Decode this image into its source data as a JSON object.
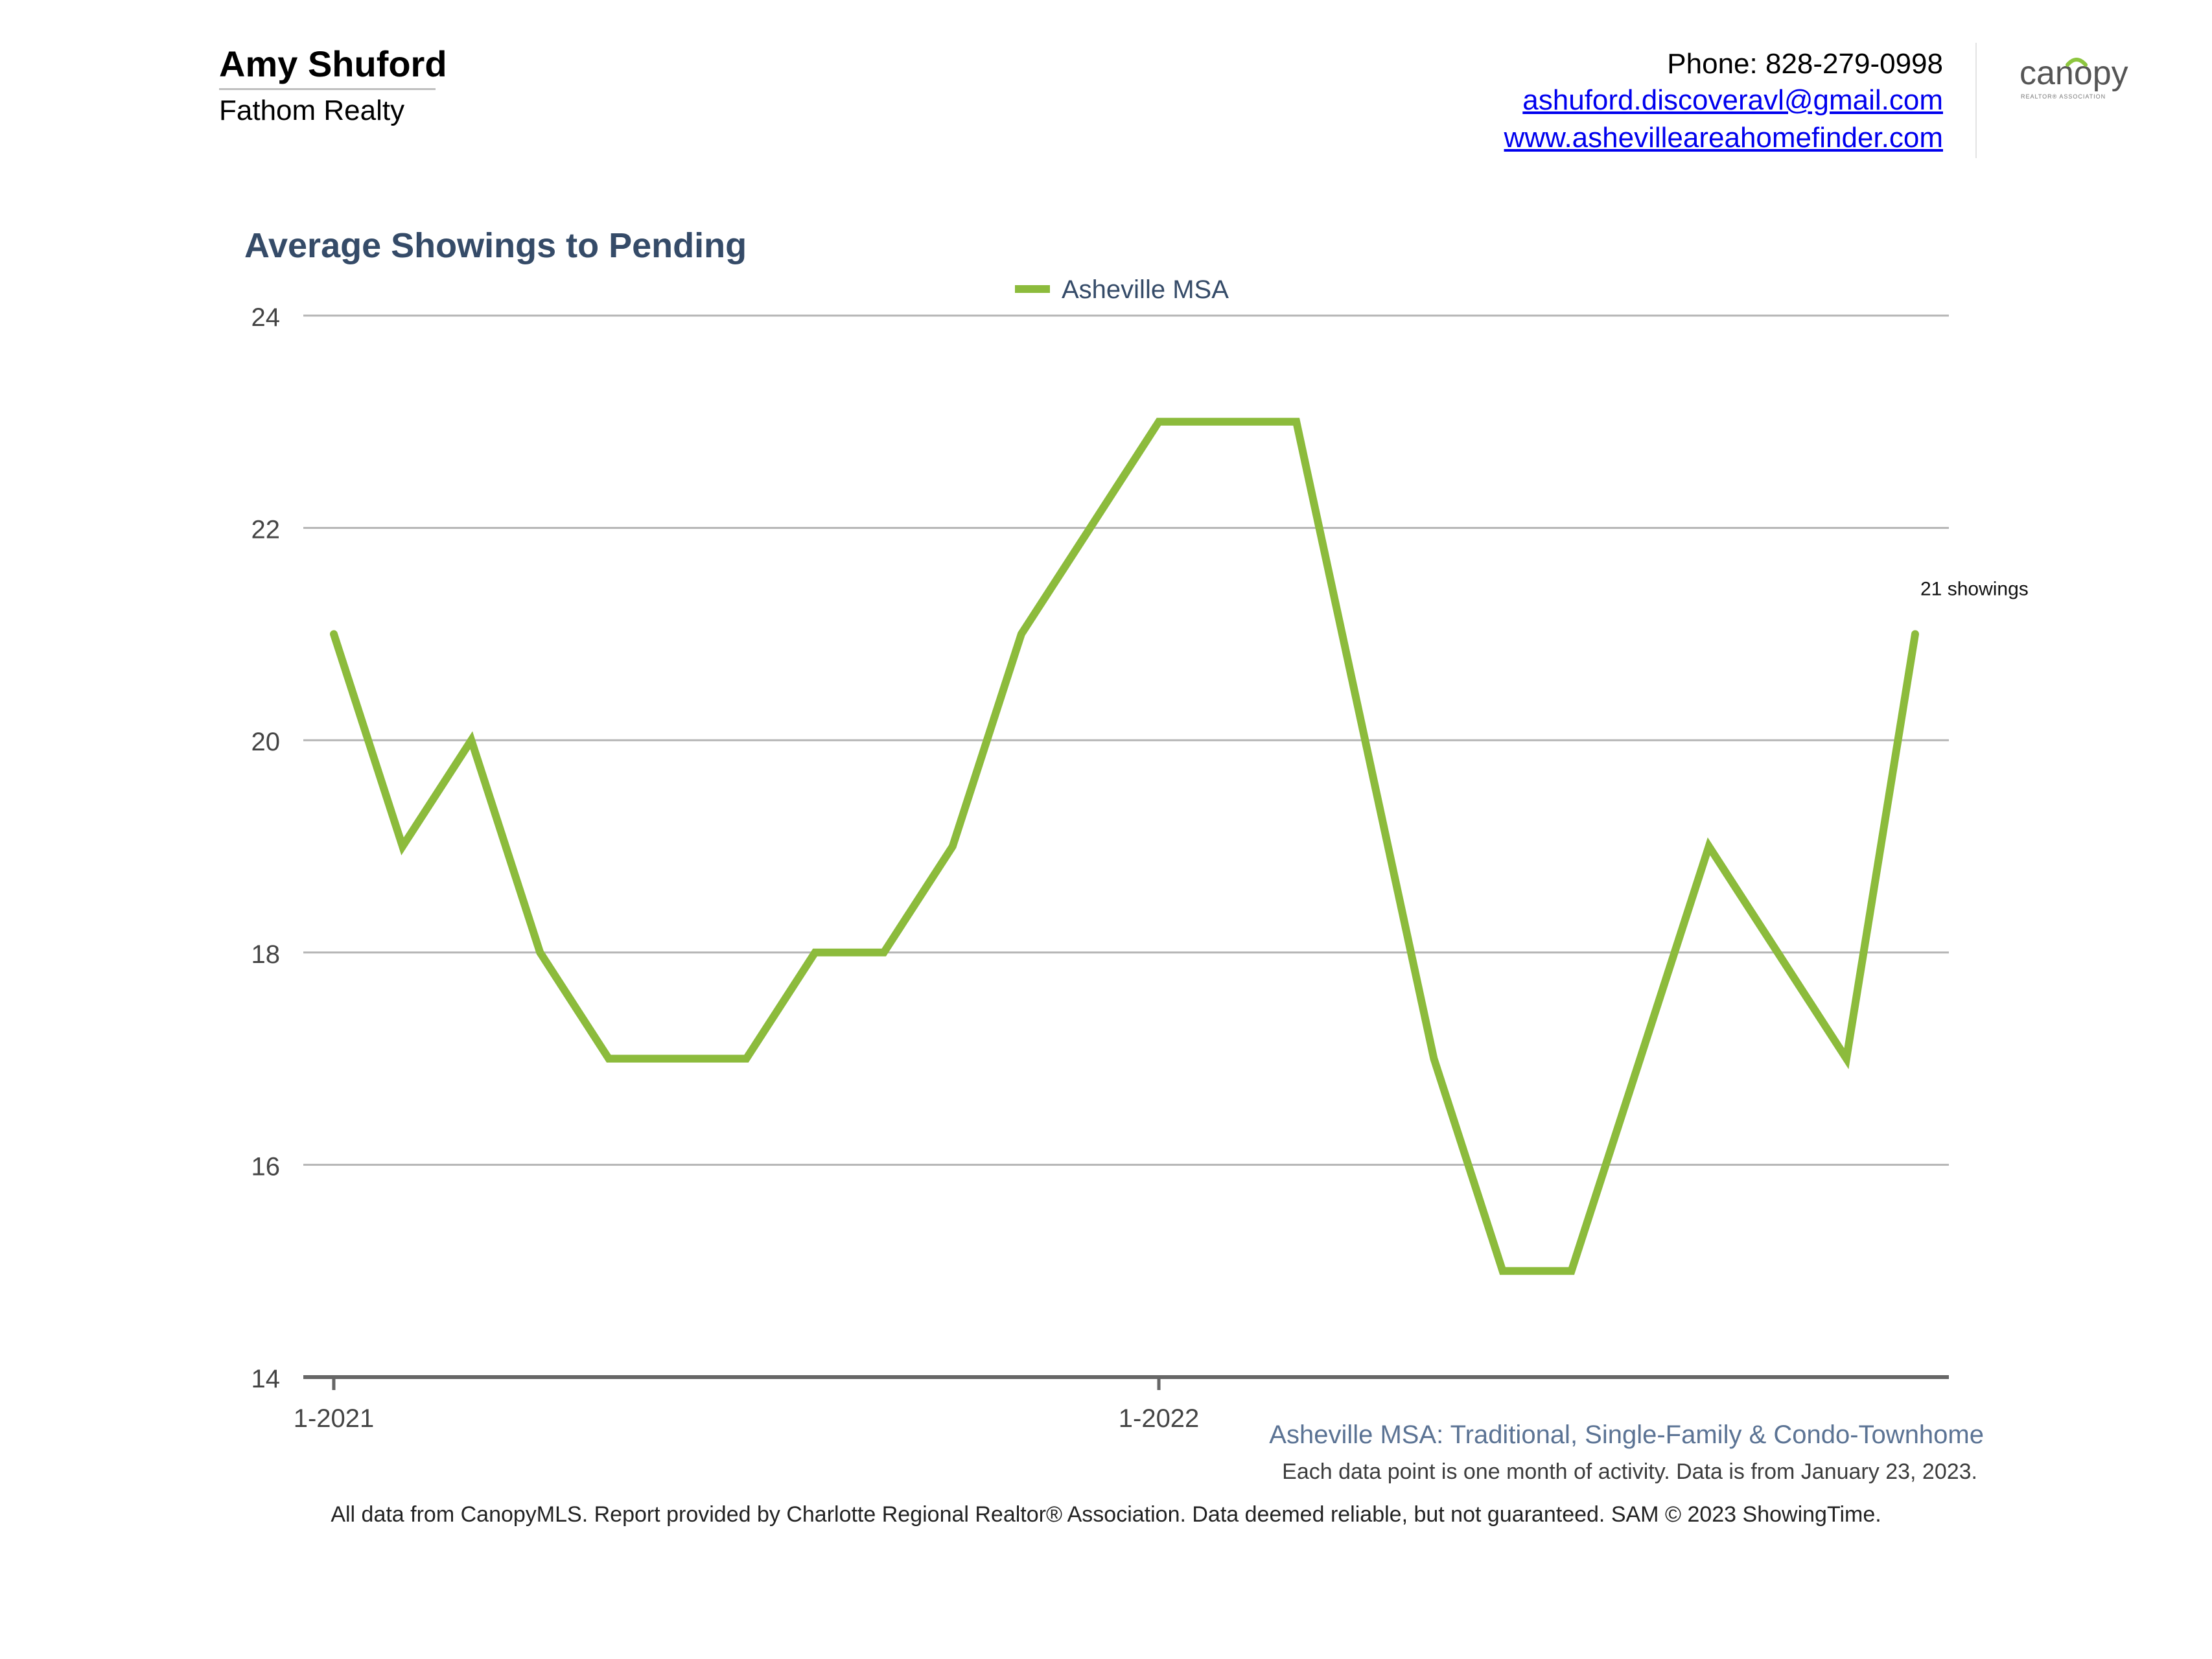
{
  "header": {
    "agent_name": "Amy Shuford",
    "brokerage": "Fathom Realty",
    "phone": "Phone: 828-279-0998",
    "email": "ashuford.discoveravl@gmail.com",
    "website": "www.ashevilleareahomefinder.com",
    "logo": {
      "wordmark": "canopy",
      "tagline": "REALTOR® ASSOCIATION",
      "accent_color": "#8dc63f",
      "text_color": "#555555"
    }
  },
  "chart_data": {
    "type": "line",
    "title": "Average Showings to Pending",
    "legend_position": "top-center",
    "grid": true,
    "x": [
      "2021-01",
      "2021-02",
      "2021-03",
      "2021-04",
      "2021-05",
      "2021-06",
      "2021-07",
      "2021-08",
      "2021-09",
      "2021-10",
      "2021-11",
      "2021-12",
      "2022-01",
      "2022-02",
      "2022-03",
      "2022-04",
      "2022-05",
      "2022-06",
      "2022-07",
      "2022-08",
      "2022-09",
      "2022-10",
      "2022-11",
      "2022-12"
    ],
    "x_tick_labels": [
      {
        "at": "2021-01",
        "label": "1-2021"
      },
      {
        "at": "2022-01",
        "label": "1-2022"
      }
    ],
    "ylim": [
      14,
      24
    ],
    "yticks": [
      14,
      16,
      18,
      20,
      22,
      24
    ],
    "series": [
      {
        "name": "Asheville MSA",
        "color": "#8cbb3c",
        "values": [
          21,
          19,
          20,
          18,
          17,
          17,
          17,
          18,
          18,
          19,
          21,
          22,
          23,
          23,
          23,
          20,
          17,
          15,
          15,
          17,
          19,
          18,
          17,
          21
        ]
      }
    ],
    "annotations": [
      {
        "at": "2022-12",
        "text": "21 showings"
      }
    ]
  },
  "footer": {
    "subtitle": "Asheville MSA: Traditional, Single-Family & Condo-Townhome",
    "note": "Each data point is one month of activity. Data is from January 23, 2023.",
    "disclaimer": "All data from CanopyMLS. Report provided by Charlotte Regional Realtor® Association. Data deemed reliable, but not guaranteed. SAM © 2023 ShowingTime."
  }
}
